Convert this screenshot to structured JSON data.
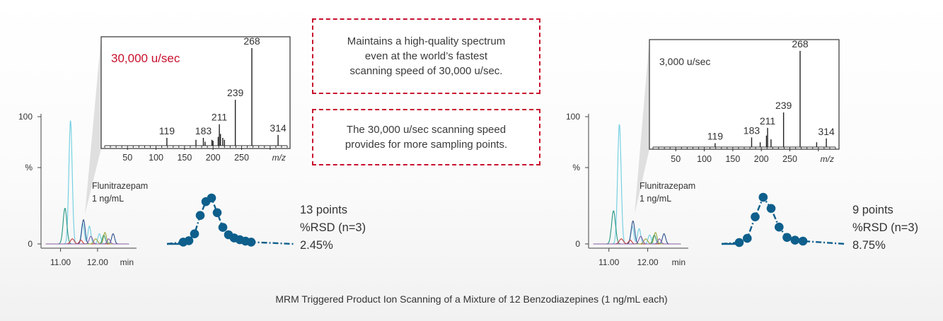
{
  "caption": "MRM Triggered Product Ion Scanning of a Mixture of 12 Benzodiazepines (1 ng/mL each)",
  "notes": [
    {
      "lines": [
        "Maintains a high-quality spectrum",
        "even at the world’s fastest",
        "scanning speed of 30,000 u/sec."
      ]
    },
    {
      "lines": [
        "The 30,000 u/sec scanning speed",
        "provides for more sampling points."
      ]
    }
  ],
  "colors": {
    "accent_red": "#c8102e",
    "peak_blue": "#0e5f8c",
    "text": "#333333"
  },
  "chart_data": [
    {
      "panel": "left",
      "chromatogram": {
        "type": "line",
        "y_ticks": [
          "100",
          "%",
          "0"
        ],
        "x_ticks": [
          "11.00",
          "12.00"
        ],
        "x_tick_values": [
          11.0,
          12.0
        ],
        "xunit": "min",
        "xlim": [
          10.55,
          12.9
        ],
        "ylim": [
          0,
          100
        ],
        "compound_label": [
          "Flunitrazepam",
          "1 ng/mL"
        ],
        "traces": [
          {
            "color": "#6ecde0",
            "peaks": [
              [
                11.27,
                97,
                0.045
              ],
              [
                11.6,
                16,
                0.04
              ],
              [
                11.78,
                14,
                0.04
              ],
              [
                12.05,
                8,
                0.04
              ]
            ]
          },
          {
            "color": "#239480",
            "peaks": [
              [
                11.12,
                28,
                0.05
              ],
              [
                12.17,
                7,
                0.04
              ]
            ]
          },
          {
            "color": "#2c4f8c",
            "peaks": [
              [
                11.62,
                19,
                0.045
              ],
              [
                12.42,
                8,
                0.04
              ]
            ]
          },
          {
            "color": "#c23b3b",
            "peaks": [
              [
                11.32,
                4,
                0.05
              ],
              [
                11.55,
                3,
                0.04
              ]
            ]
          },
          {
            "color": "#9aa83a",
            "peaks": [
              [
                11.95,
                4,
                0.05
              ],
              [
                12.2,
                9,
                0.04
              ]
            ]
          },
          {
            "color": "#8a5ea8",
            "peaks": [
              [
                11.82,
                6,
                0.045
              ],
              [
                12.3,
                4,
                0.04
              ]
            ]
          }
        ]
      },
      "spectrum": {
        "type": "bar",
        "title": "30,000 u/sec",
        "title_color": "#c8102e",
        "xlabel": "m/z",
        "xlim": [
          10,
          330
        ],
        "ylim": [
          0,
          100
        ],
        "x_ticks": [
          50,
          100,
          150,
          200,
          250
        ],
        "peaks": [
          [
            119,
            8
          ],
          [
            170,
            6
          ],
          [
            183,
            8
          ],
          [
            186,
            4
          ],
          [
            198,
            6
          ],
          [
            200,
            5
          ],
          [
            209,
            9
          ],
          [
            211,
            22
          ],
          [
            213,
            12
          ],
          [
            217,
            8
          ],
          [
            220,
            6
          ],
          [
            239,
            47
          ],
          [
            268,
            100
          ],
          [
            314,
            11
          ]
        ],
        "labels": [
          [
            119,
            "119"
          ],
          [
            183,
            "183"
          ],
          [
            211,
            "211"
          ],
          [
            239,
            "239"
          ],
          [
            268,
            "268"
          ],
          [
            314,
            "314"
          ]
        ]
      },
      "sampling": {
        "type": "scatter",
        "points": [
          0.04,
          0.07,
          0.22,
          0.62,
          0.92,
          1.0,
          0.68,
          0.36,
          0.2,
          0.13,
          0.09,
          0.06,
          0.04
        ],
        "summary": [
          "13 points",
          "%RSD (n=3)",
          "2.45%"
        ]
      }
    },
    {
      "panel": "right",
      "chromatogram": {
        "type": "line",
        "y_ticks": [
          "100",
          "%",
          "0"
        ],
        "x_ticks": [
          "11.00",
          "12.00"
        ],
        "x_tick_values": [
          11.0,
          12.0
        ],
        "xunit": "min",
        "xlim": [
          10.55,
          12.9
        ],
        "ylim": [
          0,
          100
        ],
        "compound_label": [
          "Flunitrazepam",
          "1 ng/mL"
        ],
        "traces": [
          {
            "color": "#6ecde0",
            "peaks": [
              [
                11.27,
                94,
                0.045
              ],
              [
                11.6,
                14,
                0.04
              ],
              [
                11.78,
                12,
                0.04
              ],
              [
                12.05,
                7,
                0.04
              ]
            ]
          },
          {
            "color": "#239480",
            "peaks": [
              [
                11.12,
                26,
                0.05
              ],
              [
                12.17,
                7,
                0.04
              ]
            ]
          },
          {
            "color": "#2c4f8c",
            "peaks": [
              [
                11.62,
                18,
                0.045
              ],
              [
                12.42,
                8,
                0.04
              ]
            ]
          },
          {
            "color": "#c23b3b",
            "peaks": [
              [
                11.32,
                4,
                0.05
              ],
              [
                11.55,
                3,
                0.04
              ]
            ]
          },
          {
            "color": "#9aa83a",
            "peaks": [
              [
                11.95,
                4,
                0.05
              ],
              [
                12.2,
                9,
                0.04
              ]
            ]
          },
          {
            "color": "#8a5ea8",
            "peaks": [
              [
                11.82,
                6,
                0.045
              ],
              [
                12.3,
                4,
                0.04
              ]
            ]
          }
        ]
      },
      "spectrum": {
        "type": "bar",
        "title": "3,000 u/sec",
        "title_color": "#333333",
        "xlabel": "m/z",
        "xlim": [
          10,
          330
        ],
        "ylim": [
          0,
          100
        ],
        "x_ticks": [
          50,
          100,
          150,
          200,
          250
        ],
        "peaks": [
          [
            119,
            4
          ],
          [
            183,
            10
          ],
          [
            198,
            5
          ],
          [
            209,
            12
          ],
          [
            211,
            20
          ],
          [
            217,
            8
          ],
          [
            239,
            36
          ],
          [
            268,
            100
          ],
          [
            297,
            5
          ],
          [
            314,
            9
          ]
        ],
        "labels": [
          [
            119,
            "119"
          ],
          [
            183,
            "183"
          ],
          [
            211,
            "211"
          ],
          [
            239,
            "239"
          ],
          [
            268,
            "268"
          ],
          [
            314,
            "314"
          ]
        ]
      },
      "sampling": {
        "type": "scatter",
        "points": [
          0.03,
          0.12,
          0.58,
          1.0,
          0.76,
          0.36,
          0.14,
          0.08,
          0.06
        ],
        "summary": [
          "9 points",
          "%RSD (n=3)",
          "8.75%"
        ]
      }
    }
  ]
}
